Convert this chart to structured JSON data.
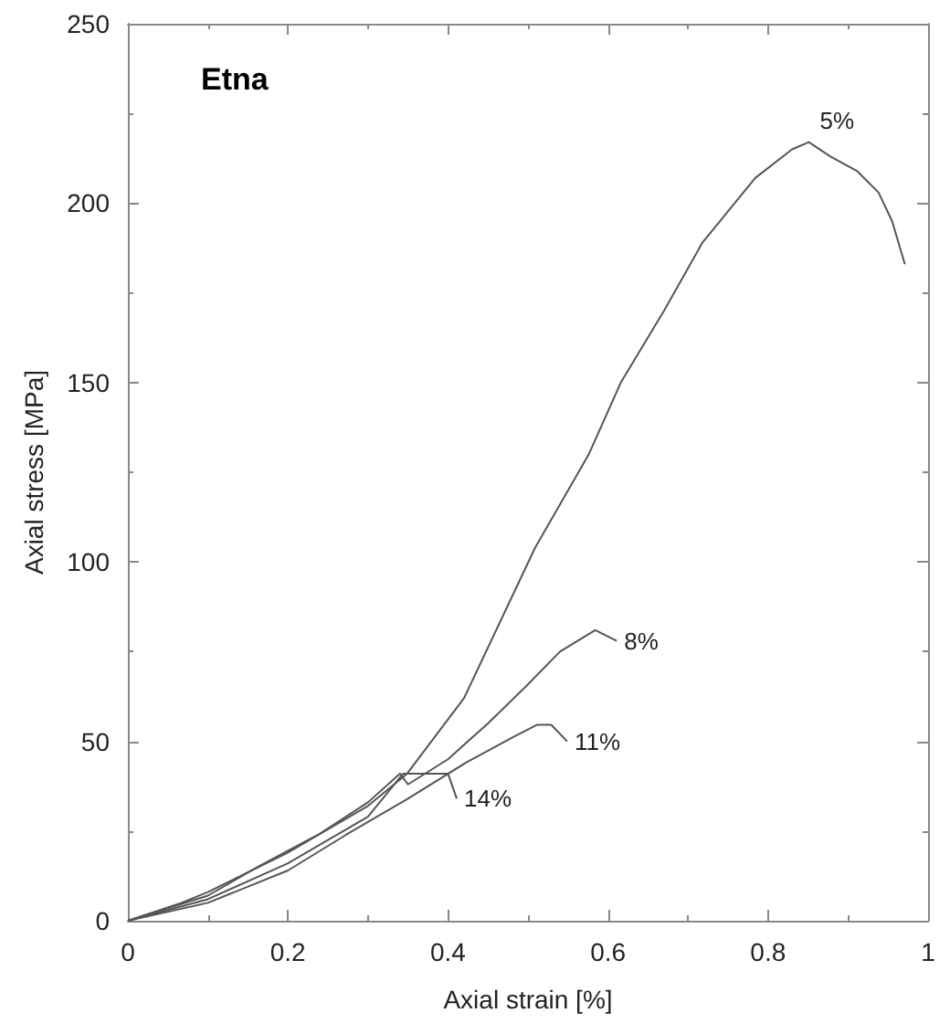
{
  "chart_data": {
    "type": "line",
    "title": "Etna",
    "xlabel": "Axial strain [%]",
    "ylabel": "Axial stress [MPa]",
    "xlim": [
      0,
      1
    ],
    "xticks": [
      0,
      0.2,
      0.4,
      0.6,
      0.8,
      1
    ],
    "ylim": [
      0,
      250
    ],
    "yticks": [
      0,
      50,
      100,
      150,
      200,
      250
    ],
    "grid": false,
    "marker": "none",
    "line_style": "solid",
    "series": [
      {
        "name": "5%",
        "color": "#555555",
        "x": [
          0,
          0.067,
          0.1,
          0.2,
          0.3,
          0.349,
          0.42,
          0.509,
          0.576,
          0.616,
          0.67,
          0.718,
          0.784,
          0.83,
          0.851,
          0.878,
          0.911,
          0.938,
          0.955,
          0.971
        ],
        "values": [
          0,
          5,
          8,
          19,
          32,
          41,
          62,
          104,
          130,
          150,
          170,
          189,
          207,
          215,
          217,
          213,
          209,
          203,
          195,
          183
        ]
      },
      {
        "name": "8%",
        "color": "#555555",
        "x": [
          0,
          0.1,
          0.162,
          0.238,
          0.3,
          0.34,
          0.35,
          0.4,
          0.45,
          0.496,
          0.54,
          0.584,
          0.611
        ],
        "values": [
          0,
          7,
          15,
          24,
          33,
          41,
          38,
          45,
          55,
          65,
          75,
          81,
          78
        ]
      },
      {
        "name": "11%",
        "color": "#555555",
        "x": [
          0,
          0.1,
          0.2,
          0.273,
          0.35,
          0.422,
          0.48,
          0.511,
          0.529,
          0.549
        ],
        "values": [
          0,
          5,
          14,
          24,
          34,
          44,
          51,
          54.6,
          54.6,
          50
        ]
      },
      {
        "name": "14%",
        "color": "#555555",
        "x": [
          0,
          0.1,
          0.2,
          0.3,
          0.344,
          0.37,
          0.4,
          0.411
        ],
        "values": [
          0,
          6,
          16,
          29,
          41,
          41,
          41,
          34
        ]
      }
    ]
  }
}
